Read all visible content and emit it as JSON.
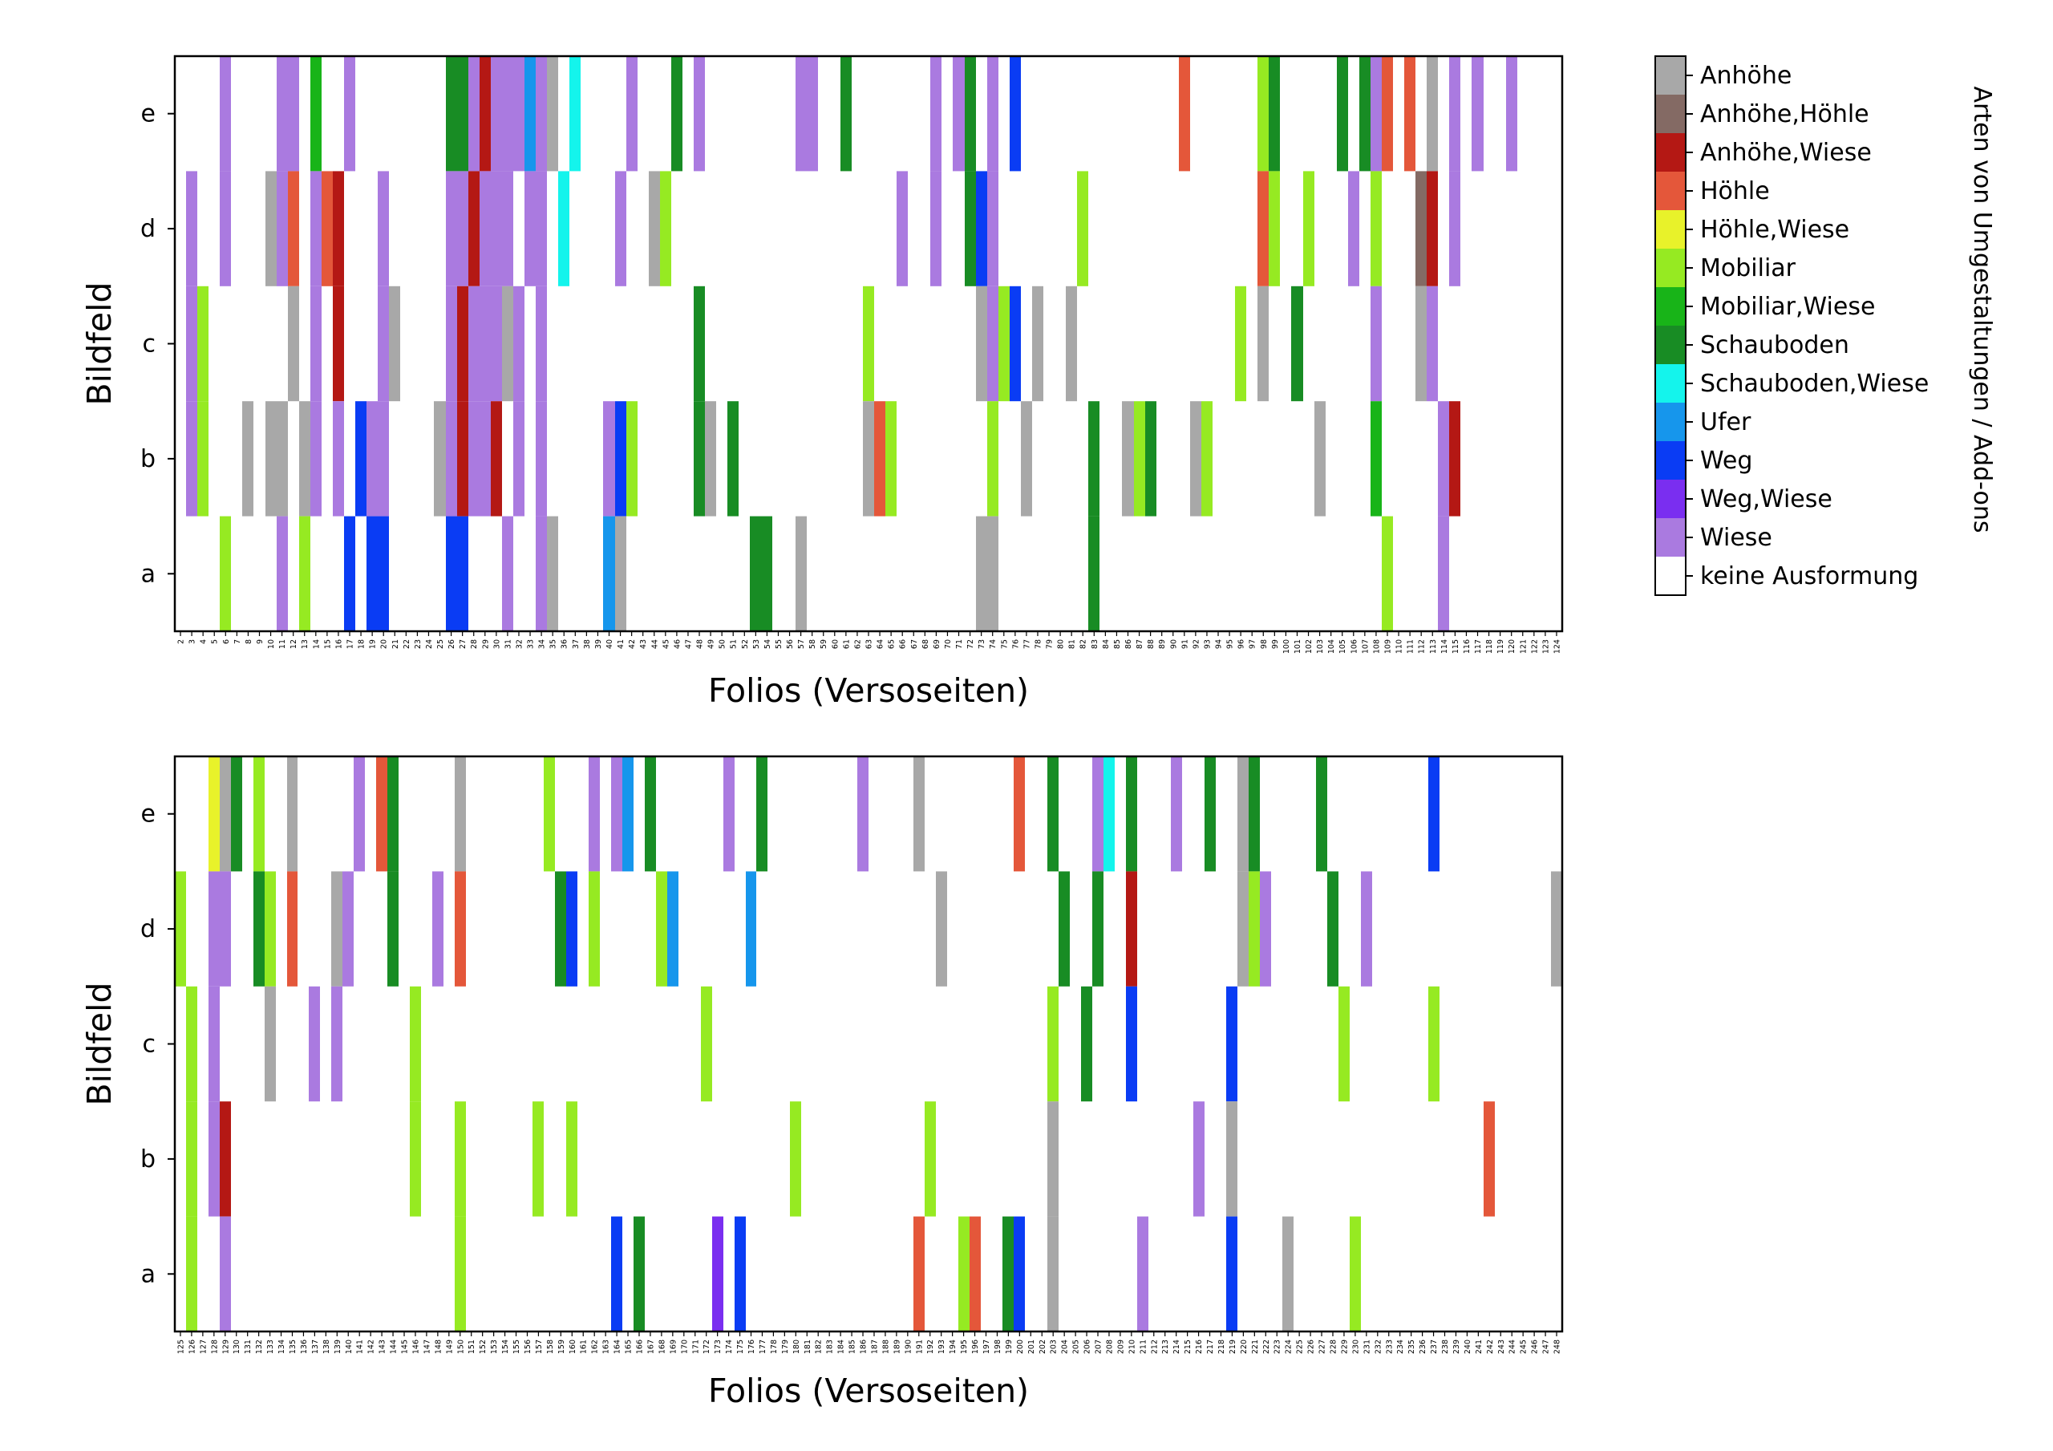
{
  "colors": {
    "Anhöhe": "#a8a8a8",
    "Anhöhe,Höhle": "#846a64",
    "Anhöhe,Wiese": "#b41814",
    "Höhle": "#e4573a",
    "Höhle,Wiese": "#e8f22a",
    "Mobiliar": "#96ea22",
    "Mobiliar,Wiese": "#18b418",
    "Schauboden": "#188c24",
    "Schauboden,Wiese": "#14f4ec",
    "Ufer": "#1696ec",
    "Weg": "#0a3cf4",
    "Weg,Wiese": "#7a2ef0",
    "Wiese": "#aa7ae0",
    "keine Ausformung": "#ffffff"
  },
  "legend": {
    "title": "Arten von Umgestaltungen / Add-ons",
    "entries": [
      "Anhöhe",
      "Anhöhe,Höhle",
      "Anhöhe,Wiese",
      "Höhle",
      "Höhle,Wiese",
      "Mobiliar",
      "Mobiliar,Wiese",
      "Schauboden",
      "Schauboden,Wiese",
      "Ufer",
      "Weg",
      "Weg,Wiese",
      "Wiese",
      "keine Ausformung"
    ]
  },
  "chart_data": [
    {
      "type": "heatmap",
      "xlabel": "Folios (Versoseiten)",
      "ylabel": "Bildfeld",
      "rows": [
        "e",
        "d",
        "c",
        "b",
        "a"
      ],
      "columns": [
        "2",
        "3",
        "4",
        "5",
        "6",
        "7",
        "8",
        "9",
        "10",
        "11",
        "12",
        "13",
        "14",
        "15",
        "16",
        "17",
        "18",
        "19",
        "20",
        "21",
        "22",
        "23",
        "24",
        "25",
        "26",
        "27",
        "28",
        "29",
        "30",
        "31",
        "32",
        "33",
        "34",
        "35",
        "36",
        "37",
        "38",
        "39",
        "40",
        "41",
        "42",
        "43",
        "44",
        "45",
        "46",
        "47",
        "48",
        "49",
        "50",
        "51",
        "52",
        "53",
        "54",
        "55",
        "56",
        "57",
        "58",
        "59",
        "60",
        "61",
        "62",
        "63",
        "64",
        "65",
        "66",
        "67",
        "68",
        "69",
        "70",
        "71",
        "72",
        "73",
        "74",
        "75",
        "76",
        "77",
        "78",
        "79",
        "80",
        "81",
        "82",
        "83",
        "84",
        "85",
        "86",
        "87",
        "88",
        "89",
        "90",
        "91",
        "92",
        "93",
        "94",
        "95",
        "96",
        "97",
        "98",
        "99",
        "100",
        "101",
        "102",
        "103",
        "104",
        "105",
        "106",
        "107",
        "108",
        "109",
        "110",
        "111",
        "112",
        "113",
        "114",
        "115",
        "116",
        "117",
        "118",
        "119",
        "120",
        "121",
        "122",
        "123",
        "124"
      ],
      "cells": {
        "e": {
          "6": "Wiese",
          "11": "Wiese",
          "12": "Wiese",
          "14": "Mobiliar,Wiese",
          "17": "Wiese",
          "26": "Schauboden",
          "27": "Schauboden",
          "28": "Wiese",
          "29": "Anhöhe,Wiese",
          "30": "Wiese",
          "31": "Wiese",
          "32": "Wiese",
          "33": "Ufer",
          "34": "Wiese",
          "35": "Anhöhe",
          "37": "Schauboden,Wiese",
          "42": "Wiese",
          "46": "Schauboden",
          "48": "Wiese",
          "57": "Wiese",
          "58": "Wiese",
          "61": "Schauboden",
          "69": "Wiese",
          "71": "Wiese",
          "72": "Schauboden",
          "74": "Wiese",
          "76": "Weg",
          "91": "Höhle",
          "98": "Mobiliar",
          "99": "Schauboden",
          "105": "Schauboden",
          "107": "Schauboden",
          "108": "Wiese",
          "109": "Höhle",
          "111": "Höhle",
          "113": "Anhöhe",
          "115": "Wiese",
          "117": "Wiese",
          "120": "Wiese"
        },
        "d": {
          "3": "Wiese",
          "6": "Wiese",
          "10": "Anhöhe",
          "11": "Wiese",
          "12": "Höhle",
          "14": "Wiese",
          "15": "Höhle",
          "16": "Anhöhe,Wiese",
          "20": "Wiese",
          "26": "Wiese",
          "27": "Wiese",
          "28": "Anhöhe,Wiese",
          "29": "Wiese",
          "30": "Wiese",
          "31": "Wiese",
          "33": "Wiese",
          "34": "Wiese",
          "36": "Schauboden,Wiese",
          "41": "Wiese",
          "44": "Anhöhe",
          "45": "Mobiliar",
          "66": "Wiese",
          "69": "Wiese",
          "72": "Schauboden",
          "73": "Weg",
          "74": "Wiese",
          "82": "Mobiliar",
          "98": "Höhle",
          "99": "Mobiliar",
          "102": "Mobiliar",
          "106": "Wiese",
          "108": "Mobiliar",
          "112": "Anhöhe,Höhle",
          "113": "Anhöhe,Wiese",
          "115": "Wiese"
        },
        "c": {
          "3": "Wiese",
          "4": "Mobiliar",
          "12": "Anhöhe",
          "14": "Wiese",
          "16": "Anhöhe,Wiese",
          "20": "Wiese",
          "21": "Anhöhe",
          "26": "Wiese",
          "27": "Anhöhe,Wiese",
          "28": "Wiese",
          "29": "Wiese",
          "30": "Wiese",
          "31": "Anhöhe",
          "32": "Wiese",
          "34": "Wiese",
          "48": "Schauboden",
          "63": "Mobiliar",
          "73": "Anhöhe",
          "74": "Wiese",
          "75": "Mobiliar",
          "76": "Weg",
          "78": "Anhöhe",
          "81": "Anhöhe",
          "96": "Mobiliar",
          "98": "Anhöhe",
          "101": "Schauboden",
          "108": "Wiese",
          "112": "Anhöhe",
          "113": "Wiese"
        },
        "b": {
          "3": "Wiese",
          "4": "Mobiliar",
          "8": "Anhöhe",
          "10": "Anhöhe",
          "11": "Anhöhe",
          "13": "Anhöhe",
          "14": "Wiese",
          "16": "Wiese",
          "18": "Weg",
          "19": "Wiese",
          "20": "Wiese",
          "25": "Anhöhe",
          "26": "Wiese",
          "27": "Anhöhe,Wiese",
          "28": "Wiese",
          "29": "Wiese",
          "30": "Anhöhe,Wiese",
          "32": "Wiese",
          "34": "Wiese",
          "40": "Wiese",
          "41": "Weg",
          "42": "Mobiliar",
          "48": "Schauboden",
          "49": "Anhöhe",
          "51": "Schauboden",
          "63": "Anhöhe",
          "64": "Höhle",
          "65": "Mobiliar",
          "74": "Mobiliar",
          "77": "Anhöhe",
          "83": "Schauboden",
          "86": "Anhöhe",
          "87": "Mobiliar",
          "88": "Schauboden",
          "92": "Anhöhe",
          "93": "Mobiliar",
          "103": "Anhöhe",
          "108": "Mobiliar,Wiese",
          "114": "Wiese",
          "115": "Anhöhe,Wiese"
        },
        "a": {
          "6": "Mobiliar",
          "11": "Wiese",
          "13": "Mobiliar",
          "17": "Weg",
          "19": "Weg",
          "20": "Weg",
          "26": "Weg",
          "27": "Weg",
          "31": "Wiese",
          "34": "Wiese",
          "35": "Anhöhe",
          "40": "Ufer",
          "41": "Anhöhe",
          "53": "Schauboden",
          "54": "Schauboden",
          "57": "Anhöhe",
          "73": "Anhöhe",
          "74": "Anhöhe",
          "83": "Schauboden",
          "109": "Mobiliar",
          "114": "Wiese"
        }
      }
    },
    {
      "type": "heatmap",
      "xlabel": "Folios (Versoseiten)",
      "ylabel": "Bildfeld",
      "rows": [
        "e",
        "d",
        "c",
        "b",
        "a"
      ],
      "columns": [
        "125",
        "126",
        "127",
        "128",
        "129",
        "130",
        "131",
        "132",
        "133",
        "134",
        "135",
        "136",
        "137",
        "138",
        "139",
        "140",
        "141",
        "142",
        "143",
        "144",
        "145",
        "146",
        "147",
        "148",
        "149",
        "150",
        "151",
        "152",
        "153",
        "154",
        "155",
        "156",
        "157",
        "158",
        "159",
        "160",
        "161",
        "162",
        "163",
        "164",
        "165",
        "166",
        "167",
        "168",
        "169",
        "170",
        "171",
        "172",
        "173",
        "174",
        "175",
        "176",
        "177",
        "178",
        "179",
        "180",
        "181",
        "182",
        "183",
        "184",
        "185",
        "186",
        "187",
        "188",
        "189",
        "190",
        "191",
        "192",
        "193",
        "194",
        "195",
        "196",
        "197",
        "198",
        "199",
        "200",
        "201",
        "202",
        "203",
        "204",
        "205",
        "206",
        "207",
        "208",
        "209",
        "210",
        "211",
        "212",
        "213",
        "214",
        "215",
        "216",
        "217",
        "218",
        "219",
        "220",
        "221",
        "222",
        "223",
        "224",
        "225",
        "226",
        "227",
        "228",
        "229",
        "230",
        "231",
        "232",
        "233",
        "234",
        "235",
        "236",
        "237",
        "238",
        "239",
        "240",
        "241",
        "242",
        "243",
        "244",
        "245",
        "246",
        "247",
        "248"
      ],
      "cells": {
        "e": {
          "128": "Höhle,Wiese",
          "129": "Anhöhe",
          "130": "Schauboden",
          "132": "Mobiliar",
          "135": "Anhöhe",
          "141": "Wiese",
          "143": "Höhle",
          "144": "Schauboden",
          "150": "Anhöhe",
          "158": "Mobiliar",
          "162": "Wiese",
          "164": "Wiese",
          "165": "Ufer",
          "167": "Schauboden",
          "174": "Wiese",
          "177": "Schauboden",
          "186": "Wiese",
          "191": "Anhöhe",
          "200": "Höhle",
          "203": "Schauboden",
          "207": "Wiese",
          "208": "Schauboden,Wiese",
          "210": "Schauboden",
          "214": "Wiese",
          "217": "Schauboden",
          "220": "Anhöhe",
          "221": "Schauboden",
          "227": "Schauboden",
          "237": "Weg"
        },
        "d": {
          "125": "Mobiliar",
          "128": "Wiese",
          "129": "Wiese",
          "132": "Schauboden",
          "133": "Mobiliar",
          "135": "Höhle",
          "139": "Anhöhe",
          "140": "Wiese",
          "144": "Schauboden",
          "148": "Wiese",
          "150": "Höhle",
          "159": "Schauboden",
          "160": "Weg",
          "162": "Mobiliar",
          "168": "Mobiliar",
          "169": "Ufer",
          "176": "Ufer",
          "193": "Anhöhe",
          "204": "Schauboden",
          "207": "Schauboden",
          "210": "Anhöhe,Wiese",
          "220": "Anhöhe",
          "221": "Mobiliar",
          "222": "Wiese",
          "228": "Schauboden",
          "231": "Wiese",
          "248": "Anhöhe"
        },
        "c": {
          "126": "Mobiliar",
          "128": "Wiese",
          "133": "Anhöhe",
          "137": "Wiese",
          "139": "Wiese",
          "146": "Mobiliar",
          "172": "Mobiliar",
          "203": "Mobiliar",
          "206": "Schauboden",
          "210": "Weg",
          "219": "Weg",
          "229": "Mobiliar",
          "237": "Mobiliar"
        },
        "b": {
          "126": "Mobiliar",
          "128": "Wiese",
          "129": "Anhöhe,Wiese",
          "146": "Mobiliar",
          "150": "Mobiliar",
          "157": "Mobiliar",
          "160": "Mobiliar",
          "180": "Mobiliar",
          "192": "Mobiliar",
          "203": "Anhöhe",
          "216": "Wiese",
          "219": "Anhöhe",
          "242": "Höhle"
        },
        "a": {
          "126": "Mobiliar",
          "129": "Wiese",
          "150": "Mobiliar",
          "164": "Weg",
          "166": "Schauboden",
          "173": "Weg,Wiese",
          "175": "Weg",
          "191": "Höhle",
          "195": "Mobiliar",
          "196": "Höhle",
          "199": "Schauboden",
          "200": "Weg",
          "203": "Anhöhe",
          "211": "Wiese",
          "219": "Weg",
          "224": "Anhöhe",
          "230": "Mobiliar"
        }
      }
    }
  ]
}
